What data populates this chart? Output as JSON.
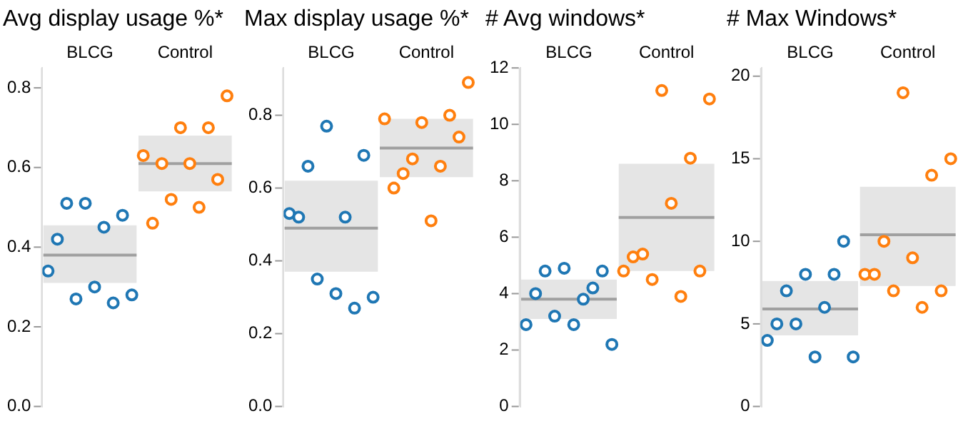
{
  "chart_data": [
    {
      "type": "box",
      "title": "Avg display usage %*",
      "categories": [
        "BLCG",
        "Control"
      ],
      "ylim": [
        0,
        0.85
      ],
      "yticks": [
        {
          "value": 0,
          "label": "0.0"
        },
        0.2,
        0.4,
        0.6,
        0.8
      ],
      "grid": false,
      "legend": false,
      "marker": "circle",
      "boxes": [
        {
          "low": 0.31,
          "q1": 0.31,
          "median": 0.38,
          "q3": 0.455,
          "high": 0.455
        },
        {
          "low": 0.54,
          "q1": 0.54,
          "median": 0.61,
          "q3": 0.68,
          "high": 0.68
        }
      ],
      "series": [
        {
          "type": "scatter",
          "color": "#1f77b4",
          "x": [
            "BLCG",
            "BLCG",
            "BLCG",
            "BLCG",
            "BLCG",
            "BLCG",
            "BLCG",
            "BLCG",
            "BLCG",
            "BLCG"
          ],
          "values": [
            0.34,
            0.42,
            0.51,
            0.27,
            0.51,
            0.3,
            0.45,
            0.26,
            0.48,
            0.28
          ]
        },
        {
          "type": "scatter",
          "color": "#ff7f0e",
          "x": [
            "Control",
            "Control",
            "Control",
            "Control",
            "Control",
            "Control",
            "Control",
            "Control",
            "Control",
            "Control"
          ],
          "values": [
            0.63,
            0.46,
            0.61,
            0.52,
            0.7,
            0.61,
            0.5,
            0.7,
            0.57,
            0.78
          ]
        }
      ]
    },
    {
      "type": "box",
      "title": "Max display usage %*",
      "categories": [
        "BLCG",
        "Control"
      ],
      "ylim": [
        0,
        0.93
      ],
      "yticks": [
        {
          "value": 0,
          "label": "0.0"
        },
        0.2,
        0.4,
        0.6,
        0.8
      ],
      "grid": false,
      "legend": false,
      "marker": "circle",
      "boxes": [
        {
          "low": 0.37,
          "q1": 0.37,
          "median": 0.49,
          "q3": 0.62,
          "high": 0.62
        },
        {
          "low": 0.63,
          "q1": 0.63,
          "median": 0.71,
          "q3": 0.79,
          "high": 0.79
        }
      ],
      "series": [
        {
          "type": "scatter",
          "color": "#1f77b4",
          "x": [
            "BLCG",
            "BLCG",
            "BLCG",
            "BLCG",
            "BLCG",
            "BLCG",
            "BLCG",
            "BLCG",
            "BLCG",
            "BLCG"
          ],
          "values": [
            0.53,
            0.52,
            0.66,
            0.35,
            0.77,
            0.31,
            0.52,
            0.27,
            0.69,
            0.3
          ]
        },
        {
          "type": "scatter",
          "color": "#ff7f0e",
          "x": [
            "Control",
            "Control",
            "Control",
            "Control",
            "Control",
            "Control",
            "Control",
            "Control",
            "Control",
            "Control"
          ],
          "values": [
            0.79,
            0.6,
            0.64,
            0.68,
            0.78,
            0.51,
            0.66,
            0.8,
            0.74,
            0.89
          ]
        }
      ]
    },
    {
      "type": "box",
      "title": "# Avg windows*",
      "categories": [
        "BLCG",
        "Control"
      ],
      "ylim": [
        0,
        12
      ],
      "yticks": [
        0,
        2,
        4,
        6,
        8,
        10,
        12
      ],
      "grid": false,
      "legend": false,
      "marker": "circle",
      "boxes": [
        {
          "low": 3.1,
          "q1": 3.1,
          "median": 3.8,
          "q3": 4.5,
          "high": 4.5
        },
        {
          "low": 4.8,
          "q1": 4.8,
          "median": 6.7,
          "q3": 8.6,
          "high": 8.6
        }
      ],
      "series": [
        {
          "type": "scatter",
          "color": "#1f77b4",
          "x": [
            "BLCG",
            "BLCG",
            "BLCG",
            "BLCG",
            "BLCG",
            "BLCG",
            "BLCG",
            "BLCG",
            "BLCG",
            "BLCG"
          ],
          "values": [
            2.9,
            4.0,
            4.8,
            3.2,
            4.9,
            2.9,
            3.8,
            4.2,
            4.8,
            2.2
          ]
        },
        {
          "type": "scatter",
          "color": "#ff7f0e",
          "x": [
            "Control",
            "Control",
            "Control",
            "Control",
            "Control",
            "Control",
            "Control",
            "Control",
            "Control",
            "Control"
          ],
          "values": [
            4.8,
            5.3,
            5.4,
            4.5,
            11.2,
            7.2,
            3.9,
            8.8,
            4.8,
            10.9
          ]
        }
      ]
    },
    {
      "type": "box",
      "title": "# Max Windows*",
      "categories": [
        "BLCG",
        "Control"
      ],
      "ylim": [
        0,
        20.5
      ],
      "yticks": [
        0,
        5,
        10,
        15,
        20
      ],
      "grid": false,
      "legend": false,
      "marker": "circle",
      "boxes": [
        {
          "low": 4.3,
          "q1": 4.3,
          "median": 5.9,
          "q3": 7.6,
          "high": 7.6
        },
        {
          "low": 7.3,
          "q1": 7.3,
          "median": 10.4,
          "q3": 13.3,
          "high": 13.3
        }
      ],
      "series": [
        {
          "type": "scatter",
          "color": "#1f77b4",
          "x": [
            "BLCG",
            "BLCG",
            "BLCG",
            "BLCG",
            "BLCG",
            "BLCG",
            "BLCG",
            "BLCG",
            "BLCG",
            "BLCG"
          ],
          "values": [
            4,
            5,
            7,
            5,
            8,
            3,
            6,
            8,
            10,
            3
          ]
        },
        {
          "type": "scatter",
          "color": "#ff7f0e",
          "x": [
            "Control",
            "Control",
            "Control",
            "Control",
            "Control",
            "Control",
            "Control",
            "Control",
            "Control",
            "Control"
          ],
          "values": [
            8,
            8,
            10,
            7,
            19,
            9,
            6,
            14,
            7,
            15
          ]
        }
      ]
    }
  ]
}
